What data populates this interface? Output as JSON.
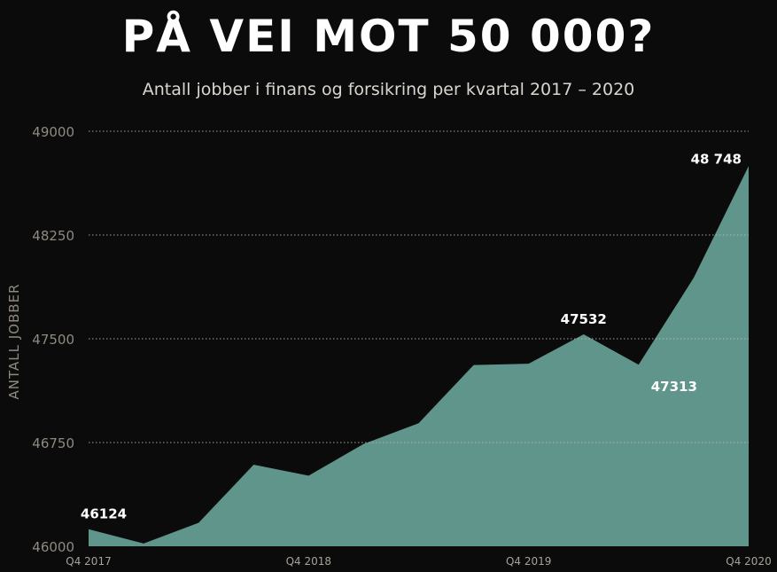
{
  "title": "PÅ VEI MOT 50 000?",
  "subtitle": "Antall jobber i finans og forsikring per kvartal 2017 – 2020",
  "colors": {
    "background": "#0b0b0b",
    "area": "#5f958b",
    "grid": "#bdbdbd",
    "text": "#ffffff",
    "muted": "#8f8a80"
  },
  "chart_data": {
    "type": "area",
    "title": "PÅ VEI MOT 50 000?",
    "subtitle": "Antall jobber i finans og forsikring per kvartal 2017 – 2020",
    "ylabel": "ANTALL JOBBER",
    "xlabel": "",
    "ylim": [
      46000,
      49000
    ],
    "yticks": [
      46000,
      46750,
      47500,
      48250,
      49000
    ],
    "ytick_labels": [
      "46000",
      "46750",
      "47500",
      "48250",
      "49000"
    ],
    "x": [
      "Q4 2017",
      "Q1 2018",
      "Q2 2018",
      "Q3 2018",
      "Q4 2018",
      "Q1 2019",
      "Q2 2019",
      "Q3 2019",
      "Q4 2019",
      "Q1 2020",
      "Q2 2020",
      "Q3 2020",
      "Q4 2020"
    ],
    "xtick_labels": [
      "Q4 2017",
      "Q4 2018",
      "Q4 2019",
      "Q4 2020"
    ],
    "values": [
      46124,
      46020,
      46170,
      46590,
      46510,
      46740,
      46890,
      47310,
      47320,
      47532,
      47313,
      47940,
      48748
    ],
    "data_labels": [
      {
        "index": 0,
        "text": "46124",
        "position": "above"
      },
      {
        "index": 9,
        "text": "47532",
        "position": "above"
      },
      {
        "index": 10,
        "text": "47313",
        "position": "below"
      },
      {
        "index": 12,
        "text": "48 748",
        "position": "above-left"
      }
    ],
    "grid": "horizontal-dotted",
    "legend": "none"
  }
}
